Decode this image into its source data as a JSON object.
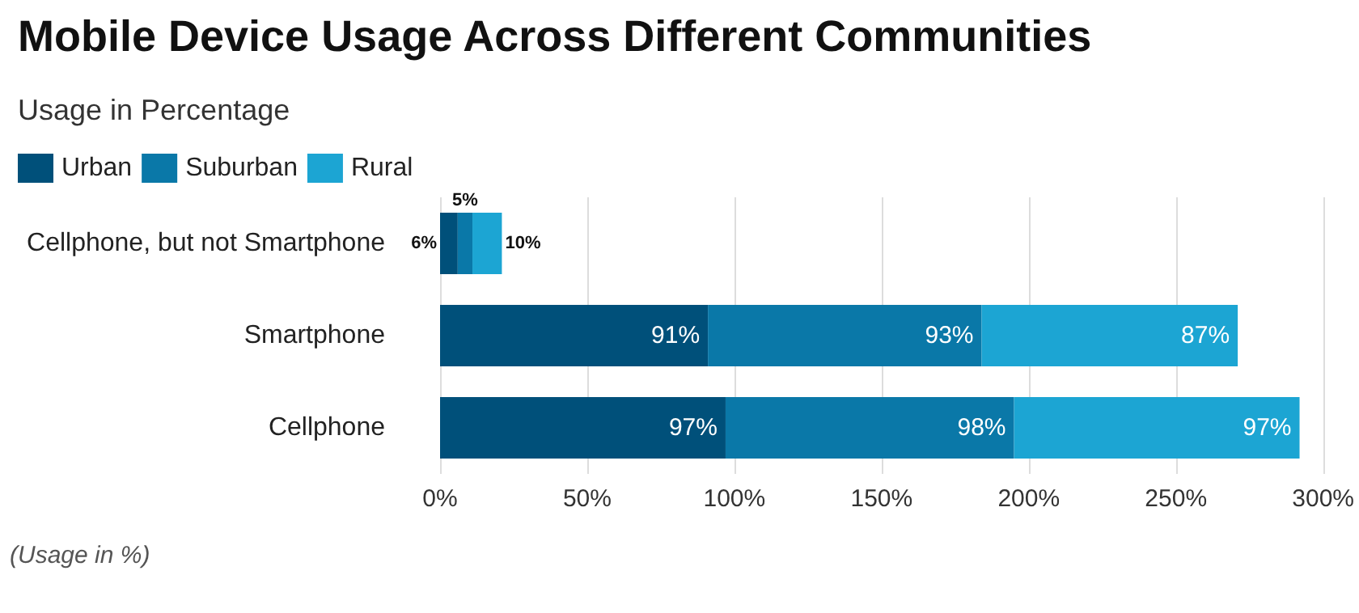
{
  "chart_data": {
    "type": "bar",
    "title": "Mobile Device Usage Across Different Communities",
    "subtitle": "Usage in Percentage",
    "orientation": "horizontal",
    "stacked": true,
    "categories": [
      "Cellphone, but not Smartphone",
      "Smartphone",
      "Cellphone"
    ],
    "series": [
      {
        "name": "Urban",
        "color": "#00507a",
        "values": [
          6,
          91,
          97
        ],
        "value_labels": [
          "6%",
          "91%",
          "97%"
        ]
      },
      {
        "name": "Suburban",
        "color": "#0a78a8",
        "values": [
          5,
          93,
          98
        ],
        "value_labels": [
          "5%",
          "93%",
          "98%"
        ]
      },
      {
        "name": "Rural",
        "color": "#1ca5d3",
        "values": [
          10,
          87,
          97
        ],
        "value_labels": [
          "10%",
          "87%",
          "97%"
        ]
      }
    ],
    "xlim": [
      0,
      300
    ],
    "xticks": [
      {
        "value": 0,
        "label": "0%"
      },
      {
        "value": 50,
        "label": "50%"
      },
      {
        "value": 100,
        "label": "100%"
      },
      {
        "value": 150,
        "label": "150%"
      },
      {
        "value": 200,
        "label": "200%"
      },
      {
        "value": 250,
        "label": "250%"
      },
      {
        "value": 300,
        "label": "300%"
      }
    ],
    "grid": "x",
    "legend": "top left",
    "annotations": [
      "(Usage in %)"
    ]
  }
}
